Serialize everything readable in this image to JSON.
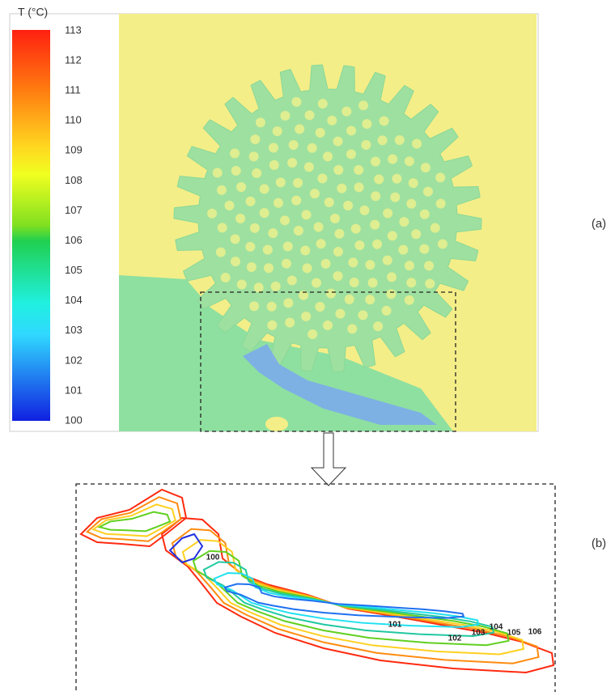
{
  "colorbar": {
    "title": "T (°C)",
    "ticks": [
      100,
      101,
      102,
      103,
      104,
      105,
      106,
      107,
      108,
      109,
      110,
      111,
      112,
      113
    ]
  },
  "panel_labels": [
    "(a)",
    "(b)"
  ],
  "contour_labels": [
    100,
    101,
    102,
    103,
    104,
    105,
    106
  ]
}
